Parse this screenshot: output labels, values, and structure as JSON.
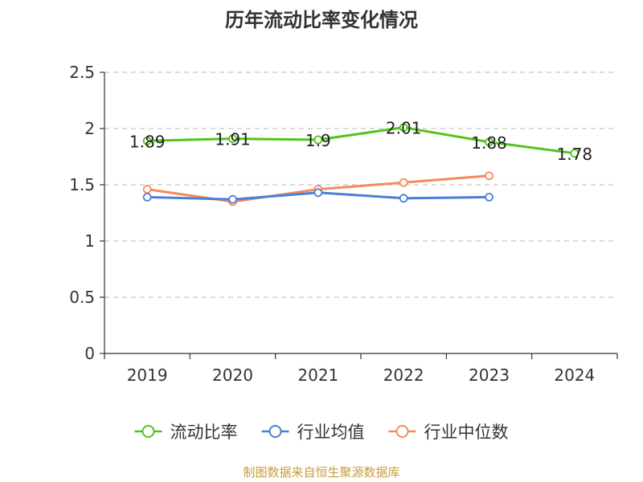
{
  "chart_data": {
    "type": "line",
    "title": "历年流动比率变化情况",
    "categories": [
      "2019",
      "2020",
      "2021",
      "2022",
      "2023",
      "2024"
    ],
    "ylim": [
      0,
      2.5
    ],
    "yticks": [
      0,
      0.5,
      1,
      1.5,
      2,
      2.5
    ],
    "ytick_labels": [
      "0",
      "0.5",
      "1",
      "1.5",
      "2",
      "2.5"
    ],
    "grid": true,
    "legend_position": "bottom",
    "series": [
      {
        "name": "流动比率",
        "color": "#52c41a",
        "values": [
          1.89,
          1.91,
          1.9,
          2.01,
          1.88,
          1.78
        ],
        "labels": [
          "1.89",
          "1.91",
          "1.9",
          "2.01",
          "1.88",
          "1.78"
        ]
      },
      {
        "name": "行业均值",
        "color": "#4a7fd9",
        "values": [
          1.39,
          1.37,
          1.43,
          1.38,
          1.39,
          null
        ]
      },
      {
        "name": "行业中位数",
        "color": "#f38b5c",
        "values": [
          1.46,
          1.35,
          1.46,
          1.52,
          1.58,
          null
        ]
      }
    ]
  },
  "footer": {
    "source": "制图数据来自恒生聚源数据库"
  }
}
